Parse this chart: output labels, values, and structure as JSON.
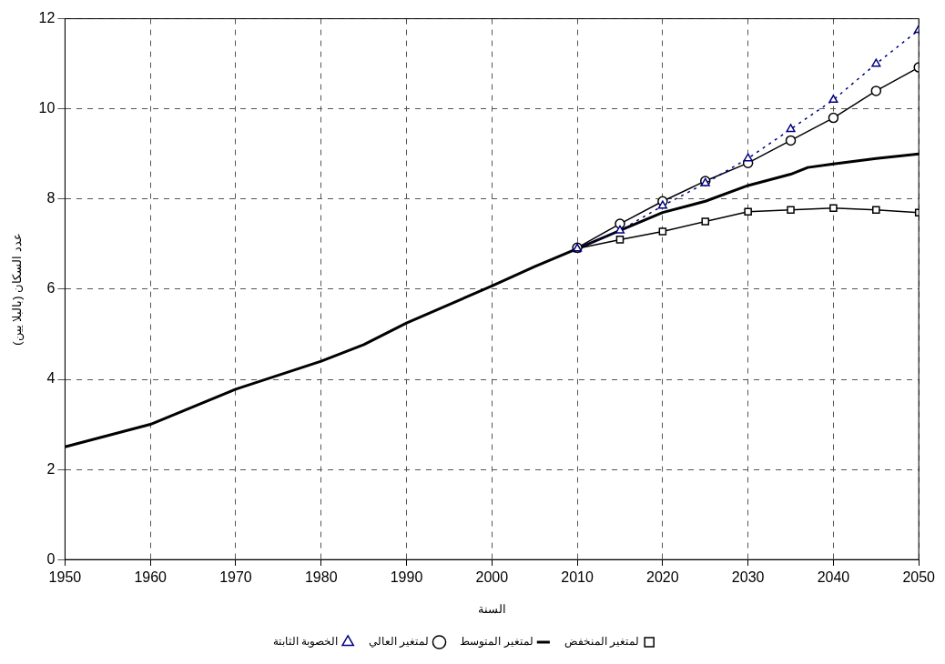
{
  "chart_data": {
    "type": "line",
    "xlabel": "السنة",
    "ylabel": "عدد السكان (بالبلا يين)",
    "xlim": [
      1950,
      2050
    ],
    "xticks": [
      1950,
      1960,
      1970,
      1980,
      1990,
      2000,
      2010,
      2020,
      2030,
      2040,
      2050
    ],
    "ylim": [
      0,
      12
    ],
    "yticks": [
      0,
      2,
      4,
      6,
      8,
      10,
      12
    ],
    "grid": true,
    "legend": "bottom",
    "series": [
      {
        "name": "لمتغير المنخفض",
        "color": "#000000",
        "marker": "square",
        "line_style": "solid",
        "x": [
          2010,
          2015,
          2020,
          2025,
          2030,
          2035,
          2040,
          2045,
          2050
        ],
        "values": [
          6.9,
          7.1,
          7.28,
          7.5,
          7.72,
          7.76,
          7.8,
          7.76,
          7.7
        ]
      },
      {
        "name": "لمتغير المتوسط",
        "color": "#000000",
        "marker": "none",
        "line_style": "solid",
        "x": [
          1950,
          1960,
          1970,
          1980,
          1985,
          1990,
          2000,
          2005,
          2010,
          2015,
          2020,
          2025,
          2030,
          2035,
          2037,
          2040,
          2045,
          2050
        ],
        "values": [
          2.5,
          3.0,
          3.78,
          4.4,
          4.77,
          5.25,
          6.07,
          6.5,
          6.9,
          7.3,
          7.7,
          7.95,
          8.3,
          8.55,
          8.7,
          8.78,
          8.9,
          9.0
        ]
      },
      {
        "name": "لمتغير العالي",
        "color": "#000000",
        "marker": "circle",
        "line_style": "solid",
        "x": [
          2010,
          2015,
          2020,
          2025,
          2030,
          2035,
          2040,
          2045,
          2050
        ],
        "values": [
          6.92,
          7.45,
          7.95,
          8.4,
          8.8,
          9.3,
          9.8,
          10.4,
          10.92
        ]
      },
      {
        "name": "الخصوبة الثابتة",
        "color": "#000080",
        "marker": "triangle",
        "line_style": "dotted",
        "x": [
          2010,
          2015,
          2020,
          2025,
          2030,
          2035,
          2040,
          2045,
          2050
        ],
        "values": [
          6.9,
          7.3,
          7.85,
          8.35,
          8.9,
          9.55,
          10.2,
          11.0,
          11.75
        ]
      }
    ]
  }
}
